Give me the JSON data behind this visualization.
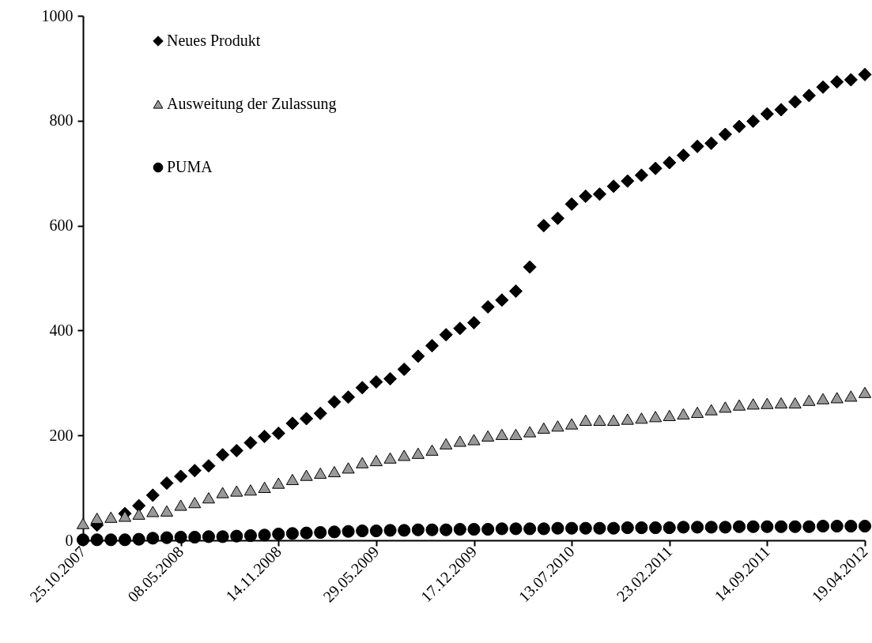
{
  "chart_data": {
    "type": "scatter",
    "categories": [
      "25.10.2007",
      null,
      null,
      null,
      null,
      null,
      null,
      "08.05.2008",
      null,
      null,
      null,
      null,
      null,
      null,
      "14.11.2008",
      null,
      null,
      null,
      null,
      null,
      null,
      "29.05.2009",
      null,
      null,
      null,
      null,
      null,
      null,
      "17.12.2009",
      null,
      null,
      null,
      null,
      null,
      null,
      "13.07.2010",
      null,
      null,
      null,
      null,
      null,
      null,
      "23.02.2011",
      null,
      null,
      null,
      null,
      null,
      null,
      "14.09.2011",
      null,
      null,
      null,
      null,
      null,
      null,
      "19.04.2012"
    ],
    "series": [
      {
        "name": "Neues Produkt",
        "color": "#000000",
        "marker": "diamond",
        "values": [
          null,
          29,
          null,
          51,
          66,
          86,
          109,
          122,
          133,
          142,
          163,
          171,
          186,
          198,
          204,
          223,
          232,
          242,
          264,
          273,
          291,
          302,
          308,
          326,
          351,
          371,
          392,
          404,
          415,
          445,
          458,
          475,
          521,
          600,
          614,
          641,
          656,
          660,
          675,
          685,
          696,
          709,
          720,
          734,
          751,
          757,
          774,
          789,
          799,
          813,
          821,
          836,
          848,
          864,
          874,
          878,
          888
        ]
      },
      {
        "name": "Ausweitung der Zulassung",
        "color": "#999999",
        "marker": "triangle",
        "values": [
          32,
          42,
          44,
          46,
          50,
          55,
          56,
          67,
          72,
          81,
          91,
          94,
          96,
          101,
          109,
          116,
          124,
          128,
          131,
          138,
          148,
          152,
          157,
          162,
          166,
          172,
          184,
          189,
          192,
          199,
          202,
          202,
          207,
          214,
          218,
          222,
          229,
          229,
          229,
          231,
          233,
          236,
          238,
          241,
          244,
          249,
          254,
          258,
          260,
          261,
          262,
          262,
          267,
          270,
          272,
          275,
          282
        ]
      },
      {
        "name": "PUMA",
        "color": "#000000",
        "marker": "circle",
        "values": [
          1,
          1,
          1,
          1,
          2,
          4,
          5,
          6,
          6,
          7,
          7,
          8,
          9,
          10,
          12,
          13,
          14,
          15,
          16,
          17,
          18,
          18,
          19,
          19,
          20,
          20,
          20,
          21,
          21,
          21,
          22,
          22,
          22,
          22,
          23,
          23,
          23,
          23,
          23,
          24,
          24,
          24,
          24,
          25,
          25,
          25,
          25,
          26,
          26,
          26,
          26,
          26,
          26,
          27,
          27,
          27,
          27
        ]
      }
    ],
    "ylim": [
      0,
      1000
    ],
    "yticks": [
      0,
      200,
      400,
      600,
      800,
      1000
    ],
    "grid": false,
    "legend": "top left"
  }
}
